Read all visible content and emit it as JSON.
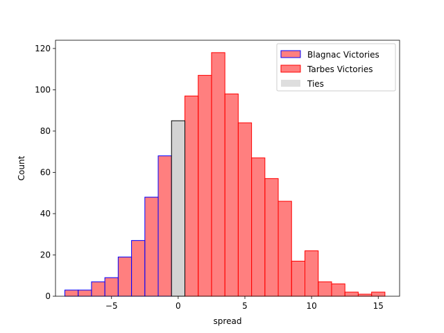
{
  "chart_data": {
    "type": "bar",
    "subtype": "histogram",
    "xlabel": "spread",
    "ylabel": "Count",
    "xlim": [
      -9.2,
      16.6
    ],
    "ylim": [
      0,
      124
    ],
    "xticks": [
      -5,
      0,
      5,
      10,
      15
    ],
    "xtick_labels": [
      "−5",
      "0",
      "5",
      "10",
      "15"
    ],
    "yticks": [
      0,
      20,
      40,
      60,
      80,
      100,
      120
    ],
    "ytick_labels": [
      "0",
      "20",
      "40",
      "60",
      "80",
      "100",
      "120"
    ],
    "grid": false,
    "legend_position": "top-right",
    "series": [
      {
        "name": "Blagnac Victories",
        "fill": "#ff0000",
        "fill_opacity": 0.5,
        "edge": "#0000ff",
        "bins": [
          {
            "x0": -8.5,
            "x1": -7.5,
            "count": 3
          },
          {
            "x0": -7.5,
            "x1": -6.5,
            "count": 3
          },
          {
            "x0": -6.5,
            "x1": -5.5,
            "count": 7
          },
          {
            "x0": -5.5,
            "x1": -4.5,
            "count": 9
          },
          {
            "x0": -4.5,
            "x1": -3.5,
            "count": 19
          },
          {
            "x0": -3.5,
            "x1": -2.5,
            "count": 27
          },
          {
            "x0": -2.5,
            "x1": -1.5,
            "count": 48
          },
          {
            "x0": -1.5,
            "x1": -0.5,
            "count": 68
          }
        ]
      },
      {
        "name": "Tarbes Victories",
        "fill": "#ff0000",
        "fill_opacity": 0.5,
        "edge": "#ff0000",
        "bins": [
          {
            "x0": 0.5,
            "x1": 1.5,
            "count": 97
          },
          {
            "x0": 1.5,
            "x1": 2.5,
            "count": 107
          },
          {
            "x0": 2.5,
            "x1": 3.5,
            "count": 118
          },
          {
            "x0": 3.5,
            "x1": 4.5,
            "count": 98
          },
          {
            "x0": 4.5,
            "x1": 5.5,
            "count": 84
          },
          {
            "x0": 5.5,
            "x1": 6.5,
            "count": 67
          },
          {
            "x0": 6.5,
            "x1": 7.5,
            "count": 57
          },
          {
            "x0": 7.5,
            "x1": 8.5,
            "count": 46
          },
          {
            "x0": 8.5,
            "x1": 9.5,
            "count": 17
          },
          {
            "x0": 9.5,
            "x1": 10.5,
            "count": 22
          },
          {
            "x0": 10.5,
            "x1": 11.5,
            "count": 7
          },
          {
            "x0": 11.5,
            "x1": 12.5,
            "count": 6
          },
          {
            "x0": 12.5,
            "x1": 13.5,
            "count": 2
          },
          {
            "x0": 13.5,
            "x1": 14.5,
            "count": 1
          },
          {
            "x0": 14.5,
            "x1": 15.5,
            "count": 2
          }
        ]
      },
      {
        "name": "Ties",
        "fill": "#d3d3d3",
        "fill_opacity": 1,
        "edge": "#000000",
        "bins": [
          {
            "x0": -0.5,
            "x1": 0.5,
            "count": 85
          }
        ]
      }
    ]
  }
}
